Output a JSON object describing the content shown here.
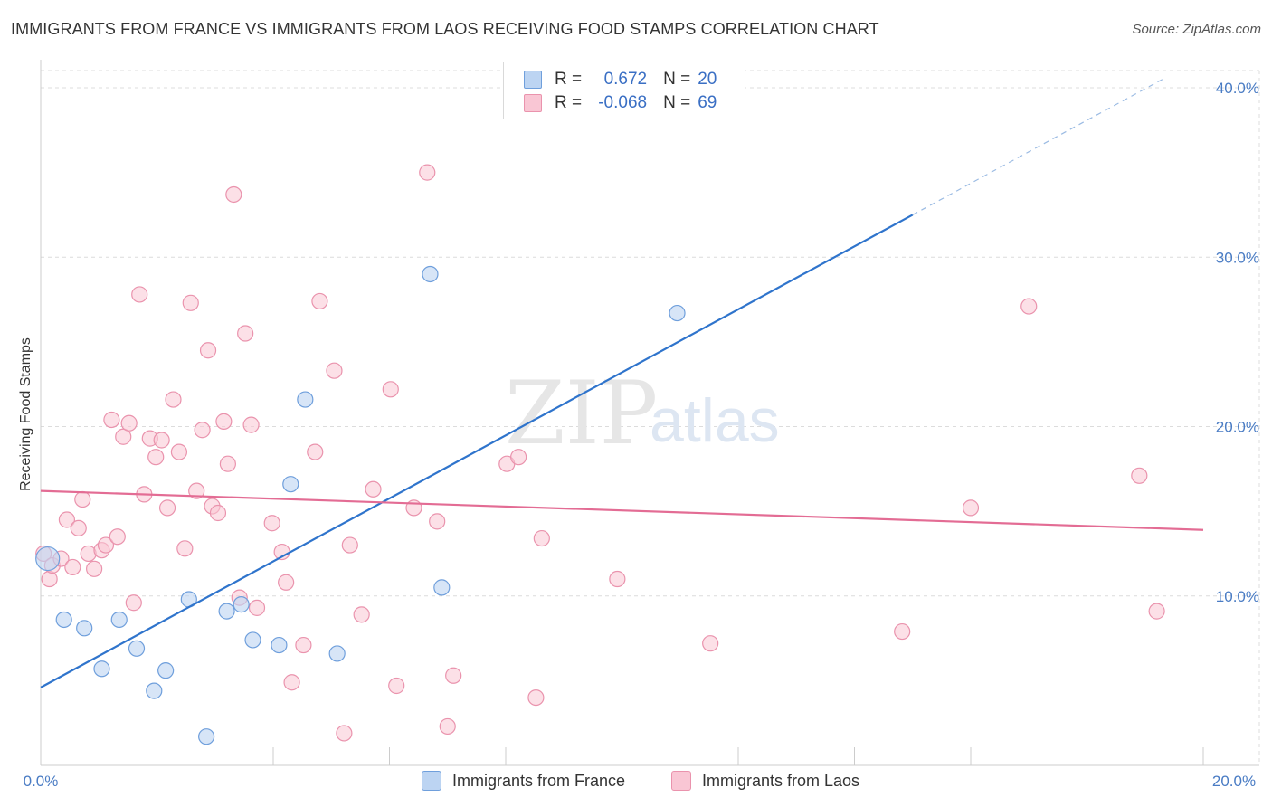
{
  "title": "IMMIGRANTS FROM FRANCE VS IMMIGRANTS FROM LAOS RECEIVING FOOD STAMPS CORRELATION CHART",
  "source": "Source: ZipAtlas.com",
  "watermark": {
    "zip": "ZIP",
    "atlas": "atlas"
  },
  "legend": {
    "r_label": "R =",
    "n_label": "N =",
    "france": {
      "r": "0.672",
      "n": "20"
    },
    "laos": {
      "r": "-0.068",
      "n": "69"
    }
  },
  "colors": {
    "france_fill": "#bcd4f2",
    "france_stroke": "#6f9fdc",
    "france_line": "#2f74cc",
    "laos_fill": "#f9c6d4",
    "laos_stroke": "#ea93ad",
    "laos_line": "#e36c94",
    "tick": "#4a7cc4"
  },
  "chart_data": {
    "type": "scatter",
    "title": "IMMIGRANTS FROM FRANCE VS IMMIGRANTS FROM LAOS RECEIVING FOOD STAMPS CORRELATION CHART",
    "xlabel": "",
    "ylabel": "Receiving Food Stamps",
    "xlim": [
      0,
      20
    ],
    "ylim": [
      0,
      40
    ],
    "x_tick_labels": [
      "0.0%",
      "20.0%"
    ],
    "y_ticks": [
      10,
      20,
      30,
      40
    ],
    "y_tick_labels": [
      "10.0%",
      "20.0%",
      "30.0%",
      "40.0%"
    ],
    "grid": true,
    "series": [
      {
        "name": "Immigrants from France",
        "r": 0.672,
        "n": 20,
        "trend": {
          "x0": 0,
          "y0": 4.6,
          "x1": 15.0,
          "y1": 32.5,
          "x_dashed_end": 19.3,
          "y_dashed_end": 40.5
        },
        "points": [
          [
            0.12,
            12.2
          ],
          [
            0.4,
            8.6
          ],
          [
            0.75,
            8.1
          ],
          [
            1.05,
            5.7
          ],
          [
            1.35,
            8.6
          ],
          [
            1.65,
            6.9
          ],
          [
            1.95,
            4.4
          ],
          [
            2.15,
            5.6
          ],
          [
            2.55,
            9.8
          ],
          [
            2.85,
            1.7
          ],
          [
            3.2,
            9.1
          ],
          [
            3.45,
            9.5
          ],
          [
            3.65,
            7.4
          ],
          [
            4.1,
            7.1
          ],
          [
            4.3,
            16.6
          ],
          [
            4.55,
            21.6
          ],
          [
            5.1,
            6.6
          ],
          [
            6.7,
            29.0
          ],
          [
            6.9,
            10.5
          ],
          [
            10.95,
            26.7
          ]
        ]
      },
      {
        "name": "Immigrants from Laos",
        "r": -0.068,
        "n": 69,
        "trend": {
          "x0": 0,
          "y0": 16.2,
          "x1": 20,
          "y1": 13.9
        },
        "points": [
          [
            0.05,
            12.5
          ],
          [
            0.15,
            11.0
          ],
          [
            0.2,
            11.8
          ],
          [
            0.35,
            12.2
          ],
          [
            0.45,
            14.5
          ],
          [
            0.55,
            11.7
          ],
          [
            0.65,
            14.0
          ],
          [
            0.72,
            15.7
          ],
          [
            0.82,
            12.5
          ],
          [
            0.92,
            11.6
          ],
          [
            1.05,
            12.7
          ],
          [
            1.12,
            13.0
          ],
          [
            1.22,
            20.4
          ],
          [
            1.32,
            13.5
          ],
          [
            1.42,
            19.4
          ],
          [
            1.52,
            20.2
          ],
          [
            1.6,
            9.6
          ],
          [
            1.7,
            27.8
          ],
          [
            1.78,
            16.0
          ],
          [
            1.88,
            19.3
          ],
          [
            1.98,
            18.2
          ],
          [
            2.08,
            19.2
          ],
          [
            2.18,
            15.2
          ],
          [
            2.28,
            21.6
          ],
          [
            2.38,
            18.5
          ],
          [
            2.48,
            12.8
          ],
          [
            2.58,
            27.3
          ],
          [
            2.68,
            16.2
          ],
          [
            2.78,
            19.8
          ],
          [
            2.88,
            24.5
          ],
          [
            2.95,
            15.3
          ],
          [
            3.05,
            14.9
          ],
          [
            3.15,
            20.3
          ],
          [
            3.22,
            17.8
          ],
          [
            3.32,
            33.7
          ],
          [
            3.42,
            9.9
          ],
          [
            3.52,
            25.5
          ],
          [
            3.62,
            20.1
          ],
          [
            3.72,
            9.3
          ],
          [
            3.98,
            14.3
          ],
          [
            4.15,
            12.6
          ],
          [
            4.22,
            10.8
          ],
          [
            4.32,
            4.9
          ],
          [
            4.52,
            7.1
          ],
          [
            4.72,
            18.5
          ],
          [
            4.8,
            27.4
          ],
          [
            5.05,
            23.3
          ],
          [
            5.22,
            1.9
          ],
          [
            5.32,
            13.0
          ],
          [
            5.52,
            8.9
          ],
          [
            5.72,
            16.3
          ],
          [
            6.02,
            22.2
          ],
          [
            6.12,
            4.7
          ],
          [
            6.42,
            15.2
          ],
          [
            6.65,
            35.0
          ],
          [
            6.82,
            14.4
          ],
          [
            7.0,
            2.3
          ],
          [
            7.1,
            5.3
          ],
          [
            8.02,
            17.8
          ],
          [
            8.22,
            18.2
          ],
          [
            8.52,
            4.0
          ],
          [
            8.62,
            13.4
          ],
          [
            9.92,
            11.0
          ],
          [
            11.52,
            7.2
          ],
          [
            14.82,
            7.9
          ],
          [
            16.0,
            15.2
          ],
          [
            17.0,
            27.1
          ],
          [
            18.9,
            17.1
          ],
          [
            19.2,
            9.1
          ]
        ]
      }
    ]
  },
  "bottom_legend": {
    "france": "Immigrants from France",
    "laos": "Immigrants from Laos"
  }
}
